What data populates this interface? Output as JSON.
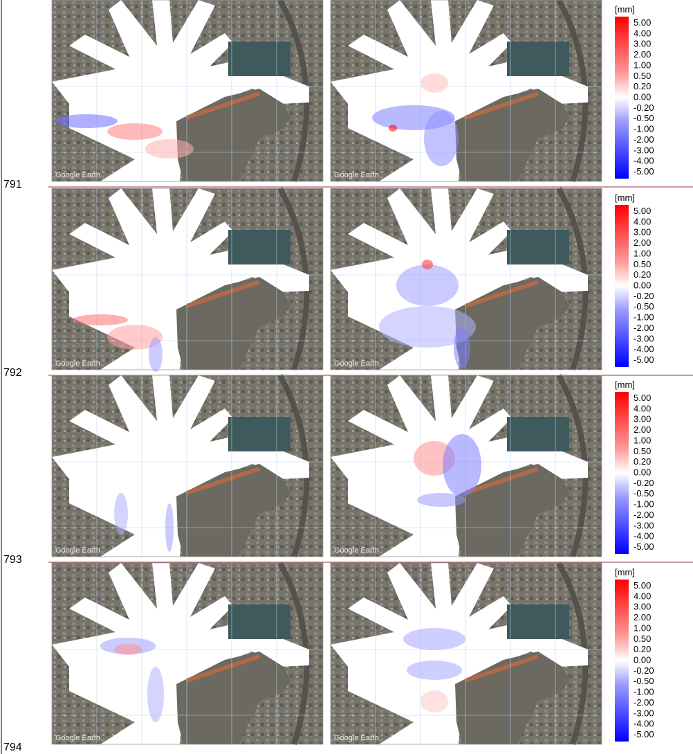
{
  "rows": [
    {
      "label": "791",
      "panels": [
        {
          "watermark": "Google Earth"
        },
        {
          "watermark": "Google Earth"
        }
      ],
      "colorbar": {
        "unit": "[mm]",
        "ticks": [
          "5.00",
          "4.00",
          "3.00",
          "2.00",
          "1.00",
          "0.50",
          "0.20",
          "0.00",
          "-0.20",
          "-0.50",
          "-1.00",
          "-2.00",
          "-3.00",
          "-4.00",
          "-5.00"
        ]
      }
    },
    {
      "label": "792",
      "panels": [
        {
          "watermark": "Google Earth"
        },
        {
          "watermark": "Google Earth"
        }
      ],
      "colorbar": {
        "unit": "[mm]",
        "ticks": [
          "5.00",
          "4.00",
          "3.00",
          "2.00",
          "1.00",
          "0.50",
          "0.20",
          "0.00",
          "-0.20",
          "-0.50",
          "-1.00",
          "-2.00",
          "-3.00",
          "-4.00",
          "-5.00"
        ]
      }
    },
    {
      "label": "793",
      "panels": [
        {
          "watermark": "Google Earth"
        },
        {
          "watermark": "Google Earth"
        }
      ],
      "colorbar": {
        "unit": "[mm]",
        "ticks": [
          "5.00",
          "4.00",
          "3.00",
          "2.00",
          "1.00",
          "0.50",
          "0.20",
          "0.00",
          "-0.20",
          "-0.50",
          "-1.00",
          "-2.00",
          "-3.00",
          "-4.00",
          "-5.00"
        ]
      }
    },
    {
      "label": "794",
      "panels": [
        {
          "watermark": "Google Earth"
        },
        {
          "watermark": "Google Earth"
        }
      ],
      "colorbar": {
        "unit": "[mm]",
        "ticks": [
          "5.00",
          "4.00",
          "3.00",
          "2.00",
          "1.00",
          "0.50",
          "0.20",
          "0.00",
          "-0.20",
          "-0.50",
          "-1.00",
          "-2.00",
          "-3.00",
          "-4.00",
          "-5.00"
        ]
      }
    }
  ]
}
